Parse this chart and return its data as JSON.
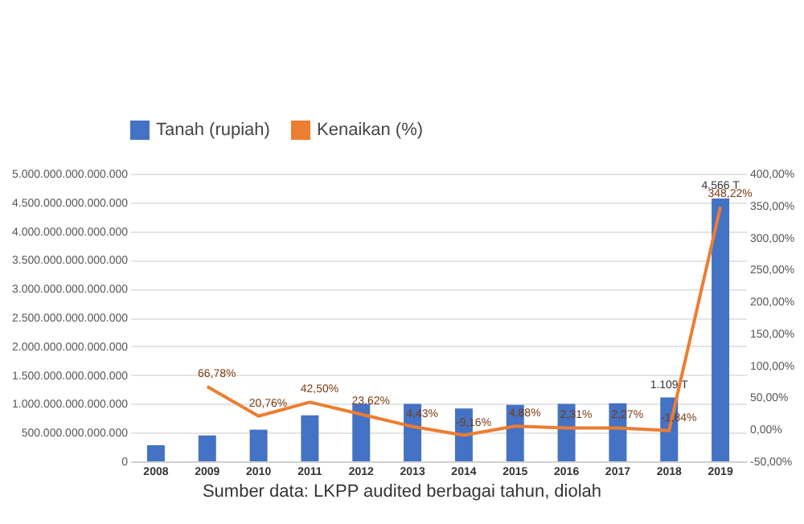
{
  "chart_data": {
    "type": "bar",
    "categories": [
      "2008",
      "2009",
      "2010",
      "2011",
      "2012",
      "2013",
      "2014",
      "2015",
      "2016",
      "2017",
      "2018",
      "2019"
    ],
    "series": [
      {
        "name": "Tanah (rupiah)",
        "color": "#4472c4",
        "values": [
          280000000000000,
          450000000000000,
          550000000000000,
          800000000000000,
          1000000000000000,
          1000000000000000,
          920000000000000,
          980000000000000,
          1000000000000000,
          1010000000000000,
          1109000000000000,
          4566000000000000
        ],
        "value_labels": [
          null,
          null,
          null,
          null,
          null,
          null,
          null,
          null,
          null,
          null,
          "1.109 T",
          "4.566 T"
        ]
      },
      {
        "name": "Kenaikan (%)",
        "type": "line",
        "axis": "y2",
        "color": "#ed7d31",
        "values": [
          null,
          66.78,
          20.76,
          42.5,
          23.62,
          4.43,
          -9.16,
          4.88,
          2.31,
          2.27,
          -1.84,
          348.22
        ],
        "value_labels": [
          null,
          "66,78%",
          "20,76%",
          "42,50%",
          "23,62%",
          "4,43%",
          "-9,16%",
          "4,88%",
          "2,31%",
          "2,27%",
          "-1,84%",
          "348,22%"
        ]
      }
    ],
    "ylim": [
      0,
      5000000000000000
    ],
    "yticks": [
      {
        "value": 0,
        "label": "0"
      },
      {
        "value": 500000000000000,
        "label": "500.000.000.000.000"
      },
      {
        "value": 1000000000000000,
        "label": "1.000.000.000.000.000"
      },
      {
        "value": 1500000000000000,
        "label": "1.500.000.000.000.000"
      },
      {
        "value": 2000000000000000,
        "label": "2.000.000.000.000.000"
      },
      {
        "value": 2500000000000000,
        "label": "2.500.000.000.000.000"
      },
      {
        "value": 3000000000000000,
        "label": "3.000.000.000.000.000"
      },
      {
        "value": 3500000000000000,
        "label": "3.500.000.000.000.000"
      },
      {
        "value": 4000000000000000,
        "label": "4.000.000.000.000.000"
      },
      {
        "value": 4500000000000000,
        "label": "4.500.000.000.000.000"
      },
      {
        "value": 5000000000000000,
        "label": "5.000.000.000.000.000"
      }
    ],
    "y2lim": [
      -50,
      400
    ],
    "y2ticks": [
      {
        "value": -50,
        "label": "-50,00%"
      },
      {
        "value": 0,
        "label": "0,00%"
      },
      {
        "value": 50,
        "label": "50,00%"
      },
      {
        "value": 100,
        "label": "100,00%"
      },
      {
        "value": 150,
        "label": "150,00%"
      },
      {
        "value": 200,
        "label": "200,00%"
      },
      {
        "value": 250,
        "label": "250,00%"
      },
      {
        "value": 300,
        "label": "300,00%"
      },
      {
        "value": 350,
        "label": "350,00%"
      },
      {
        "value": 400,
        "label": "400,00%"
      }
    ],
    "grid": "y",
    "legend": "top",
    "marker": "none",
    "line_style": "solid",
    "annotations": [
      "Sumber data: LKPP audited berbagai tahun, diolah"
    ]
  }
}
